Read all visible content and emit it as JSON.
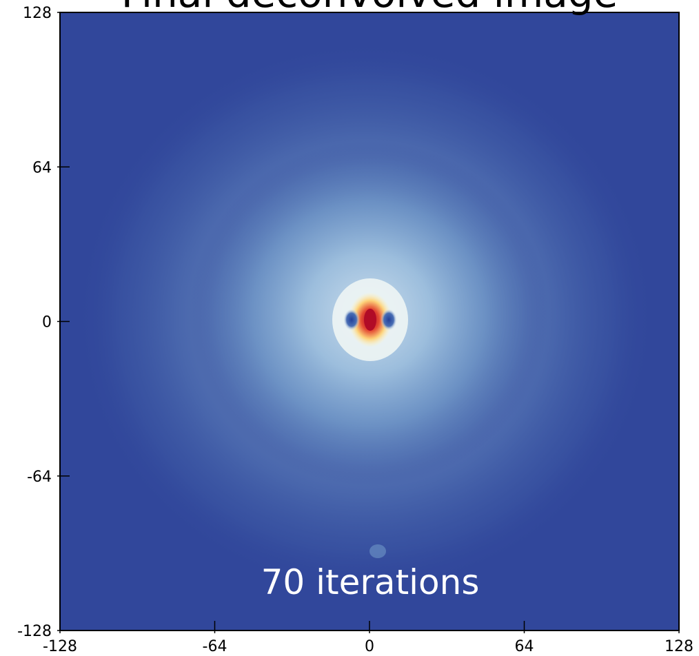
{
  "chart_data": {
    "type": "image",
    "title": "Final deconvolved image",
    "annotation": "70 iterations",
    "xlim": [
      -128,
      128
    ],
    "ylim": [
      -128,
      128
    ],
    "xticks": [
      -128,
      -64,
      0,
      64,
      128
    ],
    "yticks": [
      -128,
      -64,
      0,
      64,
      128
    ],
    "background_color": "#31479b"
  }
}
